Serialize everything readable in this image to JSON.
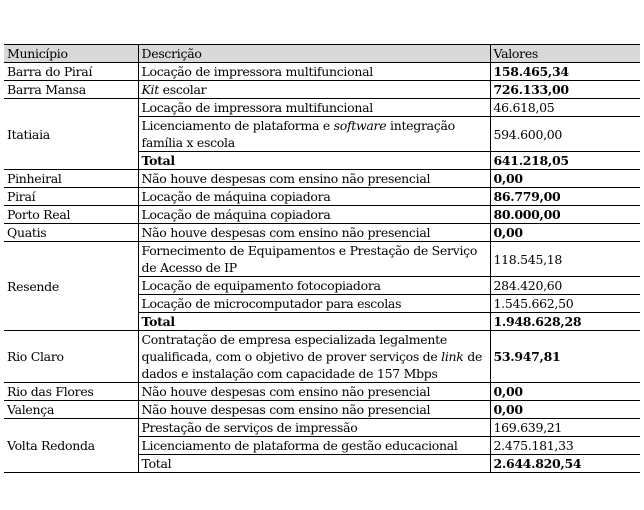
{
  "headers": [
    "Município",
    "Descrição",
    "Valores"
  ],
  "groups": [
    {
      "municipio": "Barra do Piraí",
      "rows": [
        {
          "desc": "Locação de impressora multifuncional",
          "valor": "158.465,34",
          "bold": true
        }
      ]
    },
    {
      "municipio": "Barra Mansa",
      "rows": [
        {
          "desc_italic": "Kit",
          "desc": " escolar",
          "valor": "726.133,00",
          "bold": true
        }
      ]
    },
    {
      "municipio": "Itatiaia",
      "rows": [
        {
          "desc": "Locação de impressora multifuncional",
          "valor": "46.618,05"
        },
        {
          "desc": "Licenciamento de plataforma e ",
          "desc_italic_after": "software",
          "desc_after": " integração família x escola",
          "valor": "594.600,00"
        },
        {
          "desc": "Total",
          "valor": "641.218,05",
          "bold": true,
          "bold_desc": true
        }
      ]
    },
    {
      "municipio": "Pinheiral",
      "rows": [
        {
          "desc": "Não houve despesas com ensino não presencial",
          "valor": "0,00",
          "bold": true
        }
      ]
    },
    {
      "municipio": "Piraí",
      "rows": [
        {
          "desc": "Locação de máquina copiadora",
          "valor": "86.779,00",
          "bold": true
        }
      ]
    },
    {
      "municipio": "Porto Real",
      "rows": [
        {
          "desc": "Locação de máquina copiadora",
          "valor": "80.000,00",
          "bold": true
        }
      ]
    },
    {
      "municipio": "Quatis",
      "rows": [
        {
          "desc": "Não houve despesas com ensino não presencial",
          "valor": "0,00",
          "bold": true
        }
      ]
    },
    {
      "municipio": "Resende",
      "rows": [
        {
          "desc": "Fornecimento de Equipamentos e Prestação de Serviço de Acesso de IP",
          "valor": "118.545,18"
        },
        {
          "desc": "Locação de equipamento fotocopiadora",
          "valor": "284.420,60"
        },
        {
          "desc": "Locação de microcomputador para escolas",
          "valor": "1.545.662,50"
        },
        {
          "desc": "Total",
          "valor": "1.948.628,28",
          "bold": true,
          "bold_desc": true
        }
      ]
    },
    {
      "municipio": "Rio Claro",
      "rows": [
        {
          "desc": "Contratação de empresa especializada legalmente qualificada, com o objetivo de prover serviços de ",
          "desc_italic_after": "link",
          "desc_after": " de dados e instalação com capacidade de 157 Mbps",
          "valor": "53.947,81",
          "bold": true
        }
      ]
    },
    {
      "municipio": "Rio das Flores",
      "rows": [
        {
          "desc": "Não houve despesas com ensino não presencial",
          "valor": "0,00",
          "bold": true
        }
      ]
    },
    {
      "municipio": "Valença",
      "rows": [
        {
          "desc": "Não houve despesas com ensino não presencial",
          "valor": "0,00",
          "bold": true
        }
      ]
    },
    {
      "municipio": "Volta Redonda",
      "rows": [
        {
          "desc": "Prestação de serviços de impressão",
          "valor": "169.639,21"
        },
        {
          "desc": "Licenciamento de plataforma de gestão educacional",
          "valor": "2.475.181,33"
        },
        {
          "desc": "Total",
          "valor": "2.644.820,54",
          "bold": true
        }
      ]
    }
  ]
}
